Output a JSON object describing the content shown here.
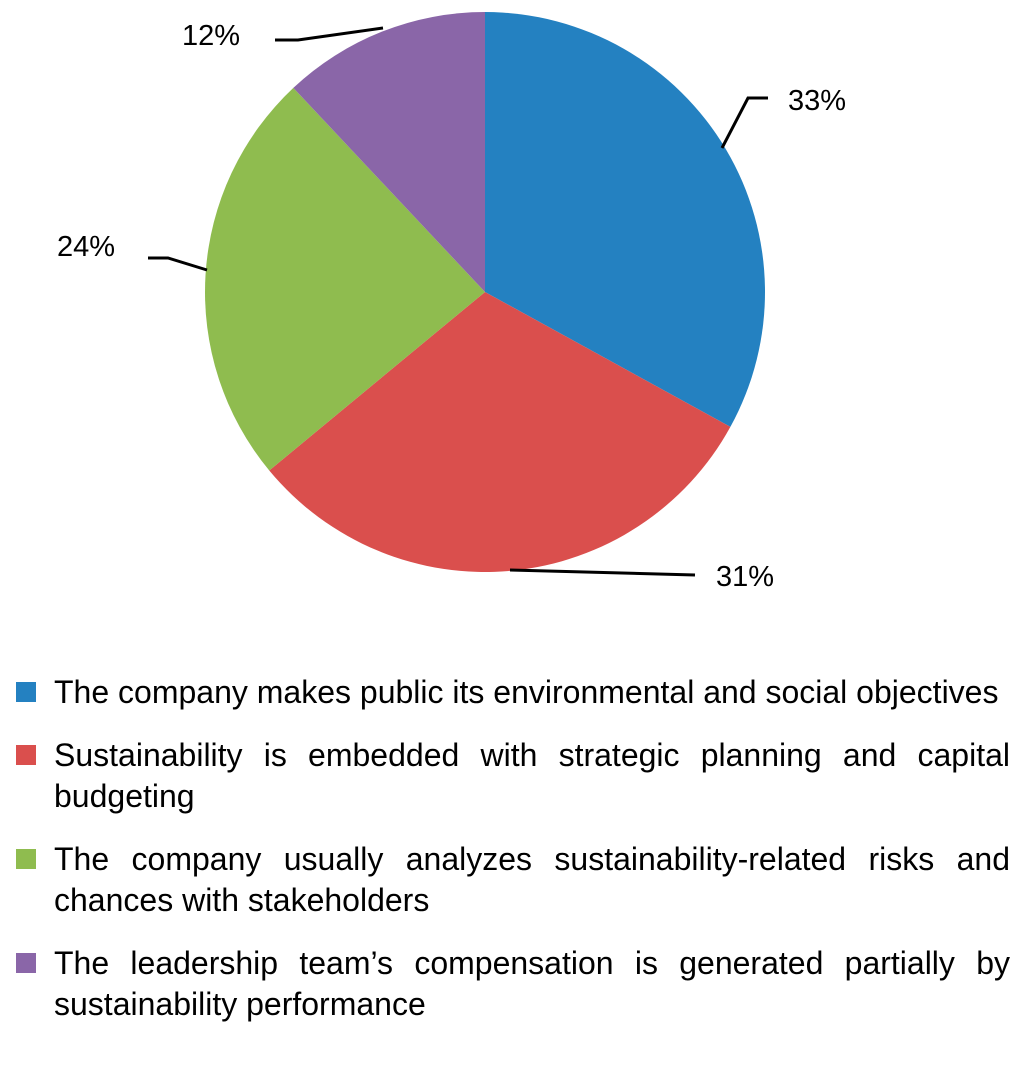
{
  "chart_data": {
    "type": "pie",
    "title": "",
    "start_angle_deg": 0,
    "direction": "clockwise",
    "slices": [
      {
        "label": "The company makes public its environmental and social objectives",
        "value": 33,
        "value_label": "33%",
        "color": "#2481C1"
      },
      {
        "label": "Sustainability is embedded with strategic planning and capital budgeting",
        "value": 31,
        "value_label": "31%",
        "color": "#DA4F4D"
      },
      {
        "label": "The company usually analyzes sustainability-related risks and chances with stakeholders",
        "value": 24,
        "value_label": "24%",
        "color": "#8FBC4F"
      },
      {
        "label": "The leadership team’s compensation is generated partially by sustainability performance",
        "value": 12,
        "value_label": "12%",
        "color": "#8A66A8"
      }
    ],
    "legend_position": "bottom",
    "label_style": "outside-with-leader-lines"
  }
}
